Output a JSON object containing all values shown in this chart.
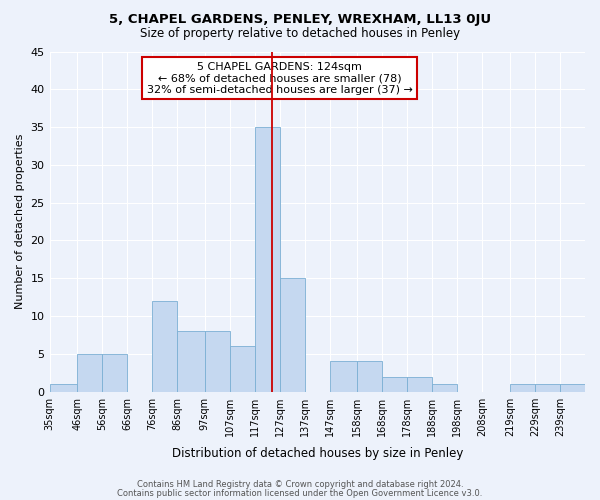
{
  "title1": "5, CHAPEL GARDENS, PENLEY, WREXHAM, LL13 0JU",
  "title2": "Size of property relative to detached houses in Penley",
  "xlabel": "Distribution of detached houses by size in Penley",
  "ylabel": "Number of detached properties",
  "bin_labels": [
    "35sqm",
    "46sqm",
    "56sqm",
    "66sqm",
    "76sqm",
    "86sqm",
    "97sqm",
    "107sqm",
    "117sqm",
    "127sqm",
    "137sqm",
    "147sqm",
    "158sqm",
    "168sqm",
    "178sqm",
    "188sqm",
    "198sqm",
    "208sqm",
    "219sqm",
    "229sqm",
    "239sqm"
  ],
  "bar_values": [
    1,
    5,
    5,
    0,
    12,
    8,
    8,
    6,
    35,
    15,
    0,
    4,
    4,
    2,
    2,
    1,
    0,
    0,
    1,
    1,
    1
  ],
  "bin_edges": [
    35,
    46,
    56,
    66,
    76,
    86,
    97,
    107,
    117,
    127,
    137,
    147,
    158,
    168,
    178,
    188,
    198,
    208,
    219,
    229,
    239
  ],
  "bar_color": "#c5d8f0",
  "bar_edge_color": "#7bafd4",
  "ref_line_x": 124,
  "ref_line_color": "#cc0000",
  "annotation_title": "5 CHAPEL GARDENS: 124sqm",
  "annotation_line1": "← 68% of detached houses are smaller (78)",
  "annotation_line2": "32% of semi-detached houses are larger (37) →",
  "annotation_box_color": "#ffffff",
  "annotation_box_edge": "#cc0000",
  "ylim": [
    0,
    45
  ],
  "yticks": [
    0,
    5,
    10,
    15,
    20,
    25,
    30,
    35,
    40,
    45
  ],
  "footer1": "Contains HM Land Registry data © Crown copyright and database right 2024.",
  "footer2": "Contains public sector information licensed under the Open Government Licence v3.0.",
  "bg_color": "#edf2fb"
}
